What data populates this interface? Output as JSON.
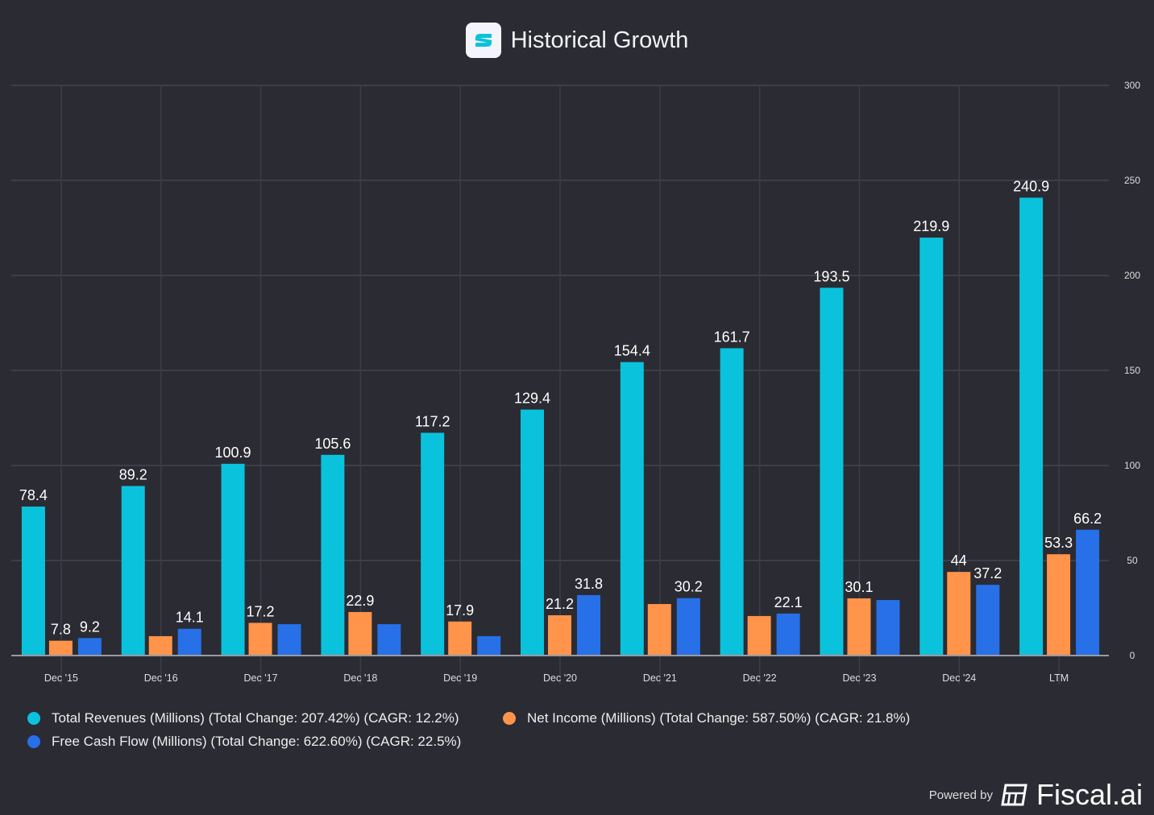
{
  "header": {
    "title": "Historical Growth"
  },
  "footer": {
    "powered_by": "Powered by",
    "brand": "Fiscal.ai"
  },
  "colors": {
    "revenue": "#0bc2dc",
    "net_income": "#ff944a",
    "fcf": "#2770e8",
    "background": "#2b2b33"
  },
  "chart_data": {
    "type": "bar",
    "title": "Historical Growth",
    "categories": [
      "Dec '15",
      "Dec '16",
      "Dec '17",
      "Dec '18",
      "Dec '19",
      "Dec '20",
      "Dec '21",
      "Dec '22",
      "Dec '23",
      "Dec '24",
      "LTM"
    ],
    "series": [
      {
        "name": "Total Revenues (Millions) (Total Change: 207.42%) (CAGR: 12.2%)",
        "color": "#0bc2dc",
        "values": [
          78.4,
          89.2,
          100.9,
          105.6,
          117.2,
          129.4,
          154.4,
          161.7,
          193.5,
          219.9,
          240.9
        ],
        "labels": [
          "78.4",
          "89.2",
          "100.9",
          "105.6",
          "117.2",
          "129.4",
          "154.4",
          "161.7",
          "193.5",
          "219.9",
          "240.9"
        ]
      },
      {
        "name": "Net Income (Millions) (Total Change: 587.50%) (CAGR: 21.8%)",
        "color": "#ff944a",
        "values": [
          7.8,
          10.2,
          17.2,
          22.9,
          17.9,
          21.2,
          27.1,
          20.8,
          30.1,
          44,
          53.3
        ],
        "labels": [
          "7.8",
          null,
          "17.2",
          "22.9",
          "17.9",
          "21.2",
          null,
          null,
          "30.1",
          "44",
          "53.3"
        ]
      },
      {
        "name": "Free Cash Flow (Millions) (Total Change: 622.60%) (CAGR: 22.5%)",
        "color": "#2770e8",
        "values": [
          9.2,
          14.1,
          16.5,
          16.5,
          10.2,
          31.8,
          30.2,
          22.1,
          29.2,
          37.2,
          66.2
        ],
        "labels": [
          "9.2",
          "14.1",
          null,
          null,
          null,
          "31.8",
          "30.2",
          "22.1",
          null,
          "37.2",
          "66.2"
        ]
      }
    ],
    "yticks": [
      0,
      50,
      100,
      150,
      200,
      250,
      300
    ],
    "ylim": [
      0,
      300
    ],
    "yaxis_position": "right",
    "grid": true,
    "legend_placement": "bottom-left"
  }
}
